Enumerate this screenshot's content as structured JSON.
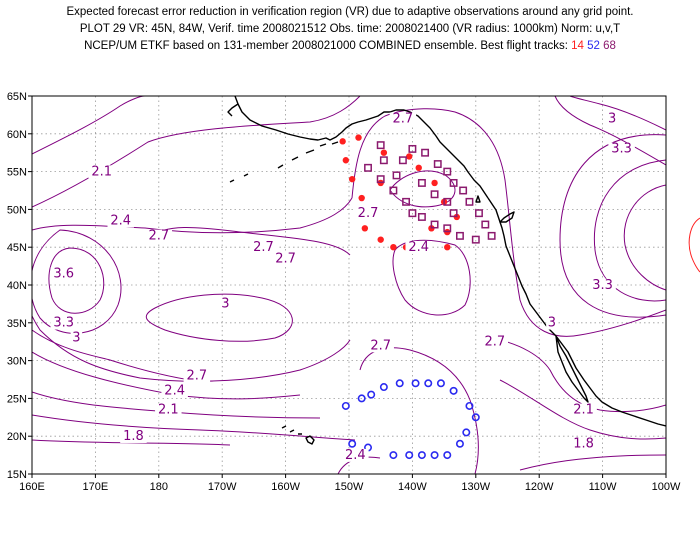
{
  "title": {
    "line1": "Expected forecast error reduction in verification region (VR) due to adaptive observations around any grid point.",
    "line2": "PLOT 29 VR: 45N, 84W, Verif. time 2008021512 Obs. time: 2008021400 (VR radius: 1000km) Norm: u,v,T",
    "line3": "NCEP/UM ETKF based on 131-member 2008021000 COMBINED ensemble.  Best flight tracks:",
    "track_a": "14",
    "track_b": "52",
    "track_c": "68"
  },
  "axes": {
    "x_ticks": [
      "160E",
      "170E",
      "180",
      "170W",
      "160W",
      "150W",
      "140W",
      "130W",
      "120W",
      "110W",
      "100W"
    ],
    "y_ticks": [
      "15N",
      "20N",
      "25N",
      "30N",
      "35N",
      "40N",
      "45N",
      "50N",
      "55N",
      "60N",
      "65N"
    ]
  },
  "contour_labels": [
    {
      "text": "2.7",
      "lon": -141.5,
      "lat": 61.5
    },
    {
      "text": "3",
      "lon": -108.5,
      "lat": 61.5
    },
    {
      "text": "3.3",
      "lon": -107,
      "lat": 57.5
    },
    {
      "text": "2.1",
      "lon": 171,
      "lat": 54.5
    },
    {
      "text": "2.4",
      "lon": 174,
      "lat": 48
    },
    {
      "text": "2.7",
      "lon": -147,
      "lat": 49
    },
    {
      "text": "2.7",
      "lon": 180,
      "lat": 46
    },
    {
      "text": "2.7",
      "lon": -163.5,
      "lat": 44.5
    },
    {
      "text": "2.4",
      "lon": -139,
      "lat": 44.5
    },
    {
      "text": "2.7",
      "lon": -160,
      "lat": 43
    },
    {
      "text": "3.6",
      "lon": 165,
      "lat": 41
    },
    {
      "text": "3.3",
      "lon": -110,
      "lat": 39.5
    },
    {
      "text": "3",
      "lon": -169.5,
      "lat": 37
    },
    {
      "text": "3.3",
      "lon": 165,
      "lat": 34.5
    },
    {
      "text": "3",
      "lon": -118,
      "lat": 34.5
    },
    {
      "text": "3",
      "lon": 167,
      "lat": 32.5
    },
    {
      "text": "2.7",
      "lon": -127,
      "lat": 32
    },
    {
      "text": "2.7",
      "lon": -145,
      "lat": 31.5
    },
    {
      "text": "2.7",
      "lon": -174,
      "lat": 27.5
    },
    {
      "text": "2.4",
      "lon": -177.5,
      "lat": 25.5
    },
    {
      "text": "2.1",
      "lon": -178.5,
      "lat": 23
    },
    {
      "text": "2.1",
      "lon": -113,
      "lat": 23
    },
    {
      "text": "1.8",
      "lon": 176,
      "lat": 19.5
    },
    {
      "text": "1.8",
      "lon": -113,
      "lat": 18.5
    },
    {
      "text": "2.4",
      "lon": -149,
      "lat": 17
    }
  ],
  "tracks": {
    "red_14": [
      [
        -151,
        59
      ],
      [
        -148.5,
        59.5
      ],
      [
        -150.5,
        56.5
      ],
      [
        -149.5,
        54
      ],
      [
        -148,
        51.5
      ],
      [
        -146.5,
        49.5
      ],
      [
        -147.5,
        47.5
      ],
      [
        -145,
        46
      ],
      [
        -143,
        45
      ],
      [
        -141,
        45
      ],
      [
        -138.5,
        45
      ],
      [
        -134.5,
        45
      ],
      [
        -134.5,
        47
      ],
      [
        -133,
        49
      ],
      [
        -135,
        51
      ],
      [
        -136.5,
        53.5
      ],
      [
        -139,
        55.5
      ],
      [
        -140.5,
        57
      ],
      [
        -144.5,
        57.5
      ],
      [
        -145,
        53.5
      ],
      [
        -137,
        47.5
      ]
    ],
    "blue_52": [
      [
        -150.5,
        24
      ],
      [
        -148,
        25
      ],
      [
        -146.5,
        25.5
      ],
      [
        -144.5,
        26.5
      ],
      [
        -142,
        27
      ],
      [
        -139.5,
        27
      ],
      [
        -137.5,
        27
      ],
      [
        -135.5,
        27
      ],
      [
        -133.5,
        26
      ],
      [
        -131,
        24
      ],
      [
        -130,
        22.5
      ],
      [
        -131.5,
        20.5
      ],
      [
        -132.5,
        19
      ],
      [
        -134.5,
        17.5
      ],
      [
        -136.5,
        17.5
      ],
      [
        -138.5,
        17.5
      ],
      [
        -140.5,
        17.5
      ],
      [
        -143,
        17.5
      ],
      [
        -147,
        18.5
      ],
      [
        -149.5,
        19
      ]
    ],
    "purple_68": [
      [
        -145,
        58.5
      ],
      [
        -144.5,
        56.5
      ],
      [
        -147,
        55.5
      ],
      [
        -145,
        54
      ],
      [
        -143,
        52.5
      ],
      [
        -141,
        51
      ],
      [
        -140,
        49.5
      ],
      [
        -138.5,
        49
      ],
      [
        -136.5,
        48
      ],
      [
        -134.5,
        47.5
      ],
      [
        -132.5,
        46.5
      ],
      [
        -130,
        46
      ],
      [
        -127.5,
        46.5
      ],
      [
        -128.5,
        48
      ],
      [
        -129.5,
        49.5
      ],
      [
        -131,
        51
      ],
      [
        -132,
        52.5
      ],
      [
        -133.5,
        53.5
      ],
      [
        -134.5,
        55
      ],
      [
        -136,
        56
      ],
      [
        -138,
        57.5
      ],
      [
        -140,
        58
      ],
      [
        -141.5,
        56.5
      ],
      [
        -142.5,
        54.5
      ],
      [
        -138.5,
        53.5
      ],
      [
        -136.5,
        52
      ],
      [
        -134.5,
        51
      ],
      [
        -133.5,
        49.5
      ]
    ]
  },
  "colors": {
    "contour": "#800080",
    "coast": "#000000",
    "grid": "#9a9a9a",
    "track_14": "#ff2020",
    "track_52": "#2a2af0",
    "track_68": "#8b1a6e",
    "verif_circle": "#ff2020"
  }
}
